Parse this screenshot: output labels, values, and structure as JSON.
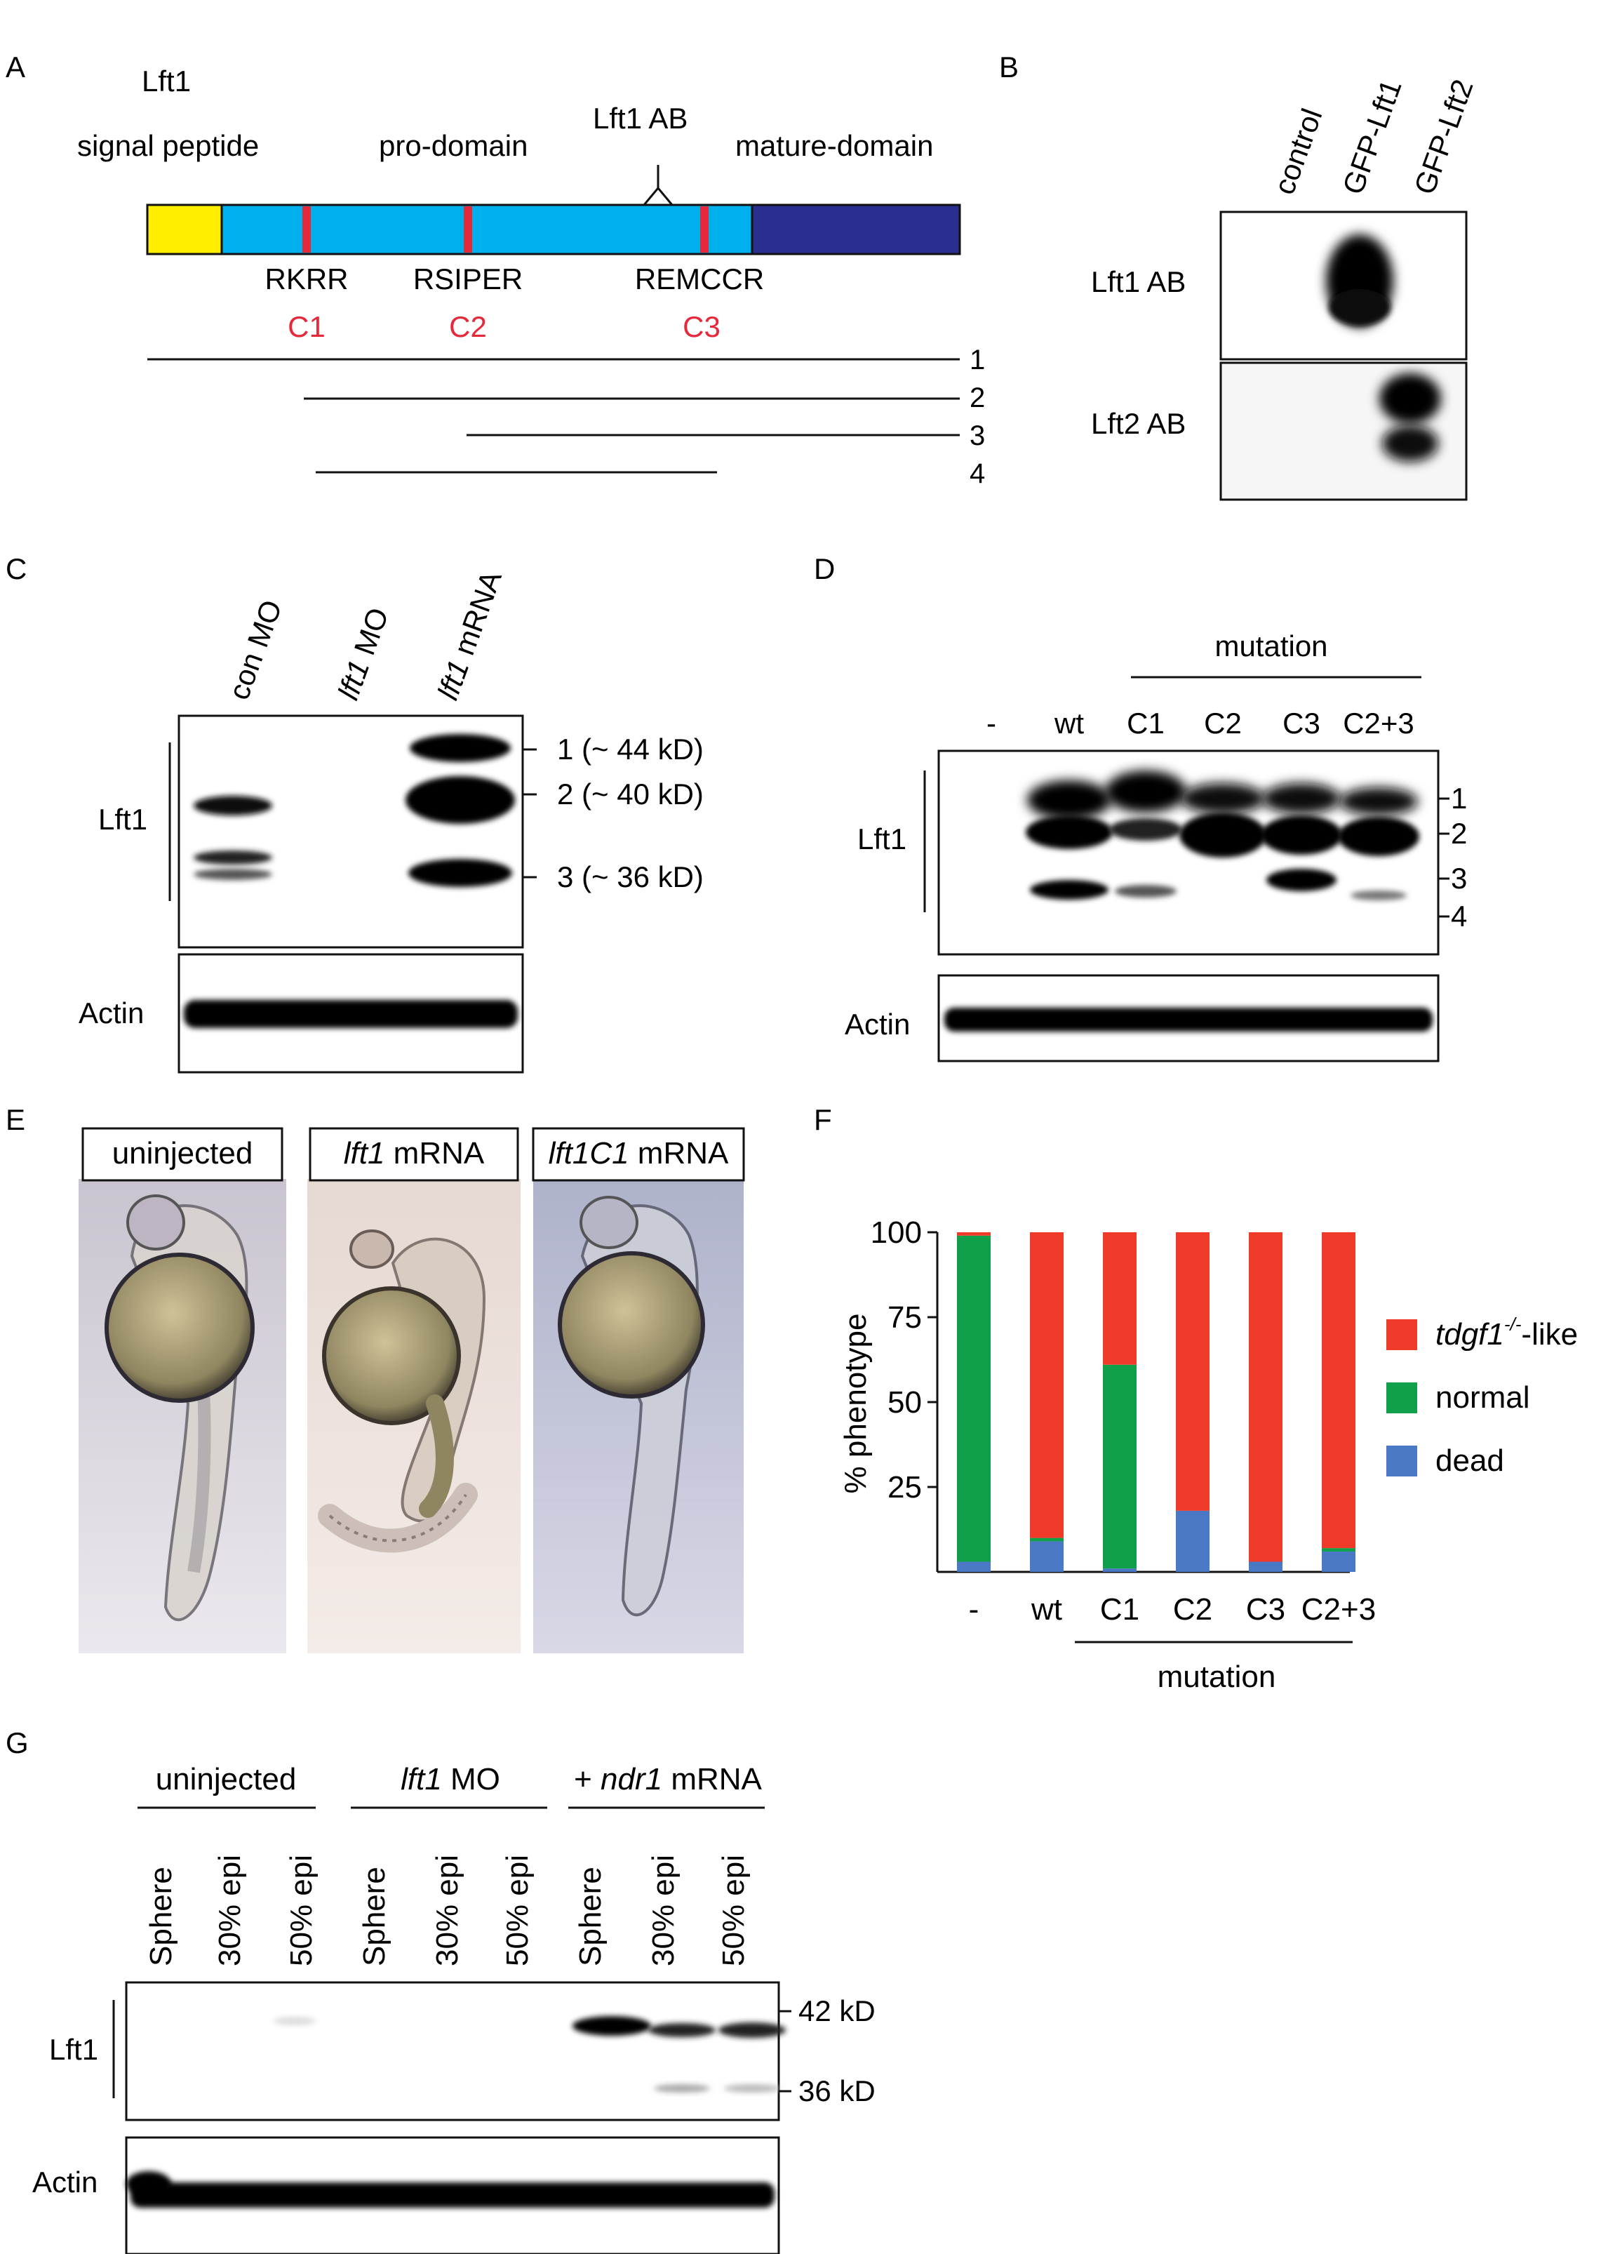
{
  "colors": {
    "signal": "#ffee00",
    "pro": "#00b0ec",
    "mature": "#2a2f8f",
    "site": "#e5293b",
    "red_label": "#e5293b",
    "bar_red": "#ef3a2a",
    "bar_green": "#10a04a",
    "bar_blue": "#4a78c4"
  },
  "panelA": {
    "letter": "A",
    "title": "Lft1",
    "signal_label": "signal peptide",
    "pro_label": "pro-domain",
    "ab_label": "Lft1 AB",
    "mature_label": "mature-domain",
    "sites": [
      {
        "seq": "RKRR",
        "name": "C1"
      },
      {
        "seq": "RSIPER",
        "name": "C2"
      },
      {
        "seq": "REMCCR",
        "name": "C3"
      }
    ],
    "fragments": [
      "1",
      "2",
      "3",
      "4"
    ]
  },
  "panelB": {
    "letter": "B",
    "lanes": [
      "control",
      "GFP-Lft1",
      "GFP-Lft2"
    ],
    "rows": [
      "Lft1 AB",
      "Lft2 AB"
    ]
  },
  "panelC": {
    "letter": "C",
    "lanes": [
      {
        "pre": "con MO",
        "it": "",
        "post": ""
      },
      {
        "pre": "",
        "it": "lft1",
        "post": " MO"
      },
      {
        "pre": "",
        "it": "lft1",
        "post": " mRNA"
      }
    ],
    "row_label": "Lft1",
    "bands": [
      "1 (~ 44 kD)",
      "2 (~ 40 kD)",
      "3 (~ 36 kD)"
    ],
    "loading": "Actin"
  },
  "panelD": {
    "letter": "D",
    "mutation_label": "mutation",
    "lanes": [
      "-",
      "wt",
      "C1",
      "C2",
      "C3",
      "C2+3"
    ],
    "row_label": "Lft1",
    "bands": [
      "1",
      "2",
      "3",
      "4"
    ],
    "loading": "Actin"
  },
  "panelE": {
    "letter": "E",
    "labels": [
      {
        "it": "",
        "post": "uninjected"
      },
      {
        "it": "lft1",
        "post": " mRNA"
      },
      {
        "it": "lft1C1",
        "post": " mRNA"
      }
    ]
  },
  "panelG": {
    "letter": "G",
    "groups": [
      {
        "pre": "uninjected",
        "it": "",
        "post": ""
      },
      {
        "pre": "",
        "it": "lft1",
        "post": " MO"
      },
      {
        "pre": "+ ",
        "it": "ndr1",
        "post": " mRNA"
      }
    ],
    "stages": [
      "Sphere",
      "30% epi",
      "50% epi",
      "Sphere",
      "30% epi",
      "50% epi",
      "Sphere",
      "30% epi",
      "50% epi"
    ],
    "row_label": "Lft1",
    "markers": [
      "42 kD",
      "36 kD"
    ],
    "loading": "Actin"
  },
  "chart_data": {
    "type": "bar",
    "panel": "F",
    "categories": [
      "-",
      "wt",
      "C1",
      "C2",
      "C3",
      "C2+3"
    ],
    "group_label": "mutation",
    "ylabel": "% phenotype",
    "ylim": [
      0,
      100
    ],
    "yticks": [
      25,
      50,
      75,
      100
    ],
    "stacked": true,
    "legend_position": "right",
    "series": [
      {
        "name": "dead",
        "color": "#4a78c4",
        "values": [
          3,
          9,
          1,
          18,
          3,
          6
        ]
      },
      {
        "name": "normal",
        "color": "#10a04a",
        "values": [
          96,
          1,
          60,
          0,
          0,
          1
        ]
      },
      {
        "name": "tdgf1-/--like",
        "color": "#ef3a2a",
        "values": [
          1,
          90,
          39,
          82,
          97,
          93
        ]
      }
    ],
    "legend": [
      {
        "name": "tdgf1",
        "sup": "-/-",
        "tail": "-like",
        "color": "#ef3a2a"
      },
      {
        "name": "normal",
        "sup": "",
        "tail": "",
        "color": "#10a04a"
      },
      {
        "name": "dead",
        "sup": "",
        "tail": "",
        "color": "#4a78c4"
      }
    ]
  }
}
